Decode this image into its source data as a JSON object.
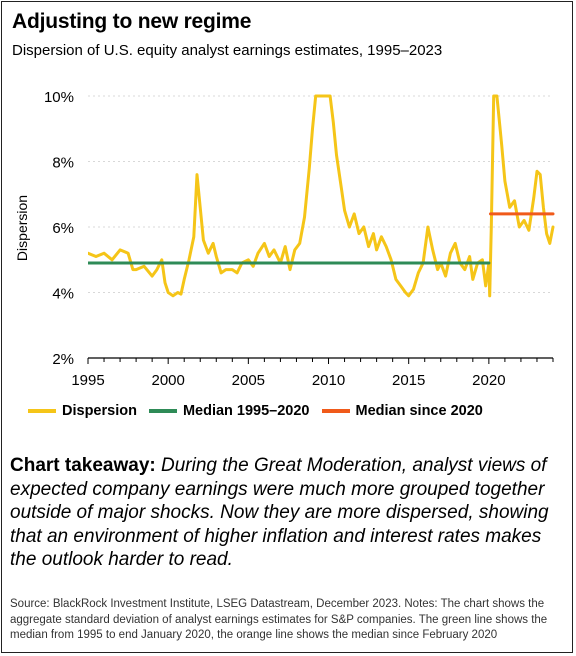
{
  "header": {
    "title": "Adjusting to new regime",
    "subtitle": "Dispersion of U.S. equity analyst earnings estimates, 1995-2023"
  },
  "chart_data": {
    "type": "line",
    "ylabel": "Dispersion",
    "xlabel": "",
    "xlim": [
      1995,
      2024
    ],
    "ylim": [
      2,
      10
    ],
    "x_ticks": [
      "1995",
      "2000",
      "2005",
      "2010",
      "2015",
      "2020"
    ],
    "y_ticks": [
      "2%",
      "4%",
      "6%",
      "8%",
      "10%"
    ],
    "series": [
      {
        "name": "Dispersion",
        "color": "#f5c518",
        "points": [
          [
            1995.0,
            5.2
          ],
          [
            1995.5,
            5.1
          ],
          [
            1996.0,
            5.2
          ],
          [
            1996.5,
            5.0
          ],
          [
            1997.0,
            5.3
          ],
          [
            1997.5,
            5.2
          ],
          [
            1997.8,
            4.7
          ],
          [
            1998.0,
            4.7
          ],
          [
            1998.5,
            4.8
          ],
          [
            1999.0,
            4.5
          ],
          [
            1999.3,
            4.7
          ],
          [
            1999.6,
            5.0
          ],
          [
            1999.8,
            4.3
          ],
          [
            2000.0,
            4.0
          ],
          [
            2000.3,
            3.9
          ],
          [
            2000.6,
            4.0
          ],
          [
            2000.8,
            3.95
          ],
          [
            2001.0,
            4.4
          ],
          [
            2001.3,
            5.0
          ],
          [
            2001.6,
            5.7
          ],
          [
            2001.8,
            7.6
          ],
          [
            2002.0,
            6.6
          ],
          [
            2002.2,
            5.6
          ],
          [
            2002.5,
            5.2
          ],
          [
            2002.8,
            5.5
          ],
          [
            2003.0,
            5.1
          ],
          [
            2003.3,
            4.6
          ],
          [
            2003.6,
            4.7
          ],
          [
            2004.0,
            4.7
          ],
          [
            2004.3,
            4.6
          ],
          [
            2004.6,
            4.9
          ],
          [
            2005.0,
            5.0
          ],
          [
            2005.3,
            4.8
          ],
          [
            2005.6,
            5.2
          ],
          [
            2006.0,
            5.5
          ],
          [
            2006.3,
            5.1
          ],
          [
            2006.6,
            5.3
          ],
          [
            2007.0,
            4.9
          ],
          [
            2007.3,
            5.4
          ],
          [
            2007.6,
            4.7
          ],
          [
            2007.9,
            5.3
          ],
          [
            2008.2,
            5.5
          ],
          [
            2008.5,
            6.3
          ],
          [
            2008.8,
            7.8
          ],
          [
            2009.0,
            9.0
          ],
          [
            2009.2,
            10.0
          ],
          [
            2009.5,
            10.0
          ],
          [
            2009.8,
            10.0
          ],
          [
            2010.1,
            10.0
          ],
          [
            2010.3,
            9.2
          ],
          [
            2010.5,
            8.2
          ],
          [
            2010.8,
            7.2
          ],
          [
            2011.0,
            6.5
          ],
          [
            2011.3,
            6.0
          ],
          [
            2011.6,
            6.4
          ],
          [
            2011.9,
            5.8
          ],
          [
            2012.2,
            6.0
          ],
          [
            2012.5,
            5.4
          ],
          [
            2012.8,
            5.8
          ],
          [
            2013.0,
            5.3
          ],
          [
            2013.3,
            5.7
          ],
          [
            2013.6,
            5.4
          ],
          [
            2013.9,
            5.0
          ],
          [
            2014.2,
            4.4
          ],
          [
            2014.5,
            4.2
          ],
          [
            2014.8,
            4.0
          ],
          [
            2015.0,
            3.9
          ],
          [
            2015.3,
            4.1
          ],
          [
            2015.6,
            4.6
          ],
          [
            2015.9,
            4.9
          ],
          [
            2016.2,
            6.0
          ],
          [
            2016.5,
            5.3
          ],
          [
            2016.8,
            4.7
          ],
          [
            2017.0,
            4.9
          ],
          [
            2017.3,
            4.5
          ],
          [
            2017.6,
            5.2
          ],
          [
            2017.9,
            5.5
          ],
          [
            2018.2,
            4.9
          ],
          [
            2018.5,
            4.7
          ],
          [
            2018.8,
            5.1
          ],
          [
            2019.0,
            4.4
          ],
          [
            2019.3,
            4.9
          ],
          [
            2019.6,
            5.0
          ],
          [
            2019.8,
            4.2
          ],
          [
            2020.0,
            4.9
          ],
          [
            2020.05,
            3.9
          ],
          [
            2020.15,
            6.0
          ],
          [
            2020.3,
            10.0
          ],
          [
            2020.5,
            10.0
          ],
          [
            2020.8,
            8.5
          ],
          [
            2021.0,
            7.4
          ],
          [
            2021.3,
            6.6
          ],
          [
            2021.6,
            6.8
          ],
          [
            2021.9,
            6.0
          ],
          [
            2022.2,
            6.2
          ],
          [
            2022.5,
            5.9
          ],
          [
            2022.8,
            6.9
          ],
          [
            2023.0,
            7.7
          ],
          [
            2023.2,
            7.6
          ],
          [
            2023.4,
            6.6
          ],
          [
            2023.6,
            5.8
          ],
          [
            2023.8,
            5.5
          ],
          [
            2024.0,
            6.0
          ]
        ]
      },
      {
        "name": "Median 1995-2020",
        "color": "#2e8b57",
        "points": [
          [
            1995.0,
            4.9
          ],
          [
            2020.0,
            4.9
          ]
        ]
      },
      {
        "name": "Median since 2020",
        "color": "#f05a1a",
        "points": [
          [
            2020.1,
            6.4
          ],
          [
            2024.0,
            6.4
          ]
        ]
      }
    ]
  },
  "takeaway": {
    "lead": "Chart takeaway:",
    "body": "During the Great Moderation, analyst views of expected company earnings were much more grouped together outside of major shocks. Now they are more dispersed, showing that an environment of higher inflation and interest rates makes the outlook harder to read."
  },
  "source": "Source: BlackRock Investment Institute, LSEG Datastream, December 2023. Notes: The chart shows the aggregate standard deviation of analyst earnings estimates for S&P companies. The green line shows the median from 1995 to end January 2020, the orange line shows the median since February 2020"
}
